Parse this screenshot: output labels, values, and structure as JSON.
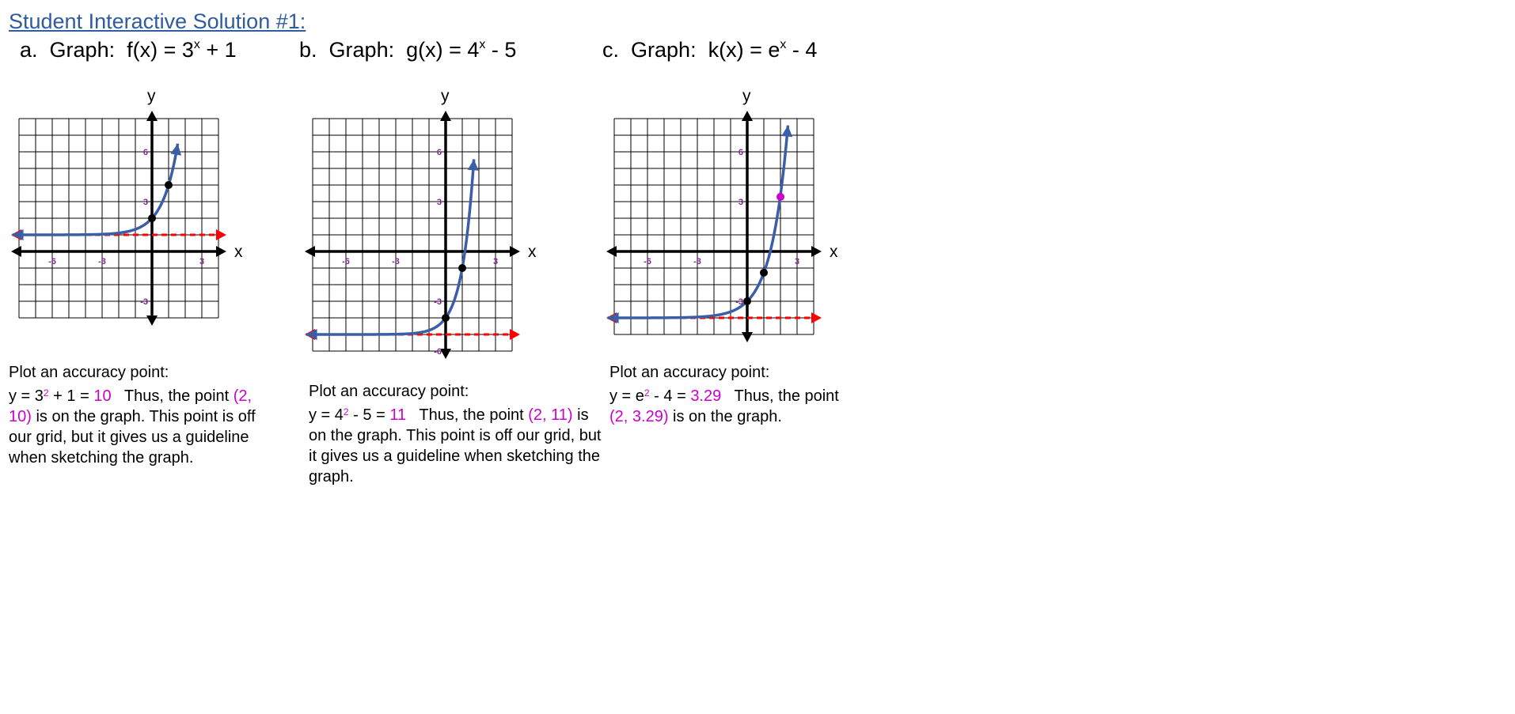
{
  "header": {
    "title": "Student Interactive Solution #1:"
  },
  "colors": {
    "curve": "#3a5ea8",
    "asymptote": "#ff0000",
    "label": "#7b2a8a",
    "highlight": "#cc00cc",
    "title": "#2e5c9e"
  },
  "problems": [
    {
      "letter": "a.",
      "lead": "Graph:",
      "func_left": "f(x) = 3",
      "exp": "x",
      "func_right": " + 1"
    },
    {
      "letter": "b.",
      "lead": "Graph:",
      "func_left": "g(x) = 4",
      "exp": "x",
      "func_right": " - 5"
    },
    {
      "letter": "c.",
      "lead": "Graph:",
      "func_left": "k(x) = e",
      "exp": "x",
      "func_right": " - 4"
    }
  ],
  "notes": [
    {
      "heading": "Plot an accuracy point:",
      "eq_pre": "y = 3",
      "eq_exp": "2",
      "eq_mid": " + 1 = ",
      "eq_val": "10",
      "after_val": "   Thus, the point",
      "point": "(2, 10)",
      "after_point": " is on the graph.  This point is off our grid, but it gives us a guideline when sketching the graph."
    },
    {
      "heading": "Plot an accuracy point:",
      "eq_pre": "y = 4",
      "eq_exp": "2",
      "eq_mid": " - 5 = ",
      "eq_val": "11",
      "after_val": "   Thus, the point",
      "point": "(2, 11)",
      "after_point": " is on the graph.  This point is off our grid, but it gives us a guideline when sketching the graph."
    },
    {
      "heading": "Plot an accuracy point:",
      "eq_pre": "y = e",
      "eq_exp": "2",
      "eq_mid": " - 4 = ",
      "eq_val": "3.29",
      "after_val": "   Thus, the point",
      "point": "(2, 3.29)",
      "after_point": " is on the graph."
    }
  ],
  "chart_data": [
    {
      "type": "line",
      "function": "f(x) = 3^x + 1",
      "xlabel": "x",
      "ylabel": "y",
      "xlim": [
        -8,
        4
      ],
      "ylim": [
        -4,
        8
      ],
      "grid": true,
      "xticks": [
        {
          "value": -6,
          "label": "-6"
        },
        {
          "value": -3,
          "label": "-3"
        },
        {
          "value": 3,
          "label": "3"
        }
      ],
      "yticks": [
        {
          "value": 6,
          "label": "6"
        },
        {
          "value": 3,
          "label": "3"
        },
        {
          "value": -3,
          "label": "-3"
        }
      ],
      "series": [
        {
          "base": 3,
          "shift": 1,
          "x_start": -8.4,
          "x_end": 1.55
        }
      ],
      "asymptote_y": 1,
      "points": [
        {
          "x": 0,
          "y": 2,
          "color": "black"
        },
        {
          "x": 1,
          "y": 4,
          "color": "black"
        }
      ]
    },
    {
      "type": "line",
      "function": "g(x) = 4^x - 5",
      "xlabel": "x",
      "ylabel": "y",
      "xlim": [
        -8,
        4
      ],
      "ylim": [
        -6,
        8
      ],
      "grid": true,
      "xticks": [
        {
          "value": -6,
          "label": "-6"
        },
        {
          "value": -3,
          "label": "-3"
        },
        {
          "value": 3,
          "label": "3"
        }
      ],
      "yticks": [
        {
          "value": 6,
          "label": "6"
        },
        {
          "value": 3,
          "label": "3"
        },
        {
          "value": -3,
          "label": "-3"
        },
        {
          "value": -6,
          "label": "-6"
        }
      ],
      "series": [
        {
          "base": 4,
          "shift": -5,
          "x_start": -8.4,
          "x_end": 1.7
        }
      ],
      "asymptote_y": -5,
      "points": [
        {
          "x": 0,
          "y": -4,
          "color": "black"
        },
        {
          "x": 1,
          "y": -1,
          "color": "black"
        }
      ]
    },
    {
      "type": "line",
      "function": "k(x) = e^x - 4",
      "xlabel": "x",
      "ylabel": "y",
      "xlim": [
        -8,
        4
      ],
      "ylim": [
        -5,
        8
      ],
      "grid": true,
      "xticks": [
        {
          "value": -6,
          "label": "-6"
        },
        {
          "value": -3,
          "label": "-3"
        },
        {
          "value": 3,
          "label": "3"
        }
      ],
      "yticks": [
        {
          "value": 6,
          "label": "6"
        },
        {
          "value": 3,
          "label": "3"
        },
        {
          "value": -3,
          "label": "-3"
        }
      ],
      "series": [
        {
          "base": 2.718281828,
          "shift": -4,
          "x_start": -8.4,
          "x_end": 2.45
        }
      ],
      "asymptote_y": -4,
      "points": [
        {
          "x": 0,
          "y": -3,
          "color": "black"
        },
        {
          "x": 1,
          "y": -1.28,
          "color": "black"
        },
        {
          "x": 2,
          "y": 3.29,
          "color": "magenta"
        }
      ]
    }
  ]
}
